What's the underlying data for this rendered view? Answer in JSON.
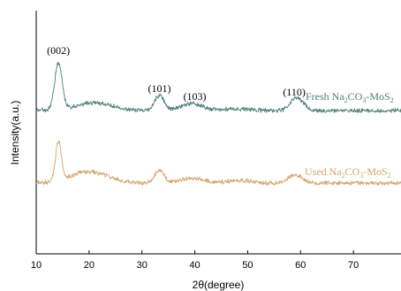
{
  "chart_data": {
    "type": "line",
    "xlabel": "2θ(degree)",
    "ylabel": "Intensity(a.u.)",
    "xlim": [
      10,
      79
    ],
    "x_ticks": [
      10,
      20,
      30,
      40,
      50,
      60,
      70
    ],
    "y_ticks_shown": false,
    "grid": false,
    "series": [
      {
        "name": "Fresh Na2CO3-MoS2",
        "label_parts": [
          "Fresh Na",
          "2",
          "CO",
          "3",
          "-MoS",
          "2"
        ],
        "color": "#4e7e76",
        "baseline": 125,
        "peaks": [
          {
            "x": 14.2,
            "height": 53,
            "width": 0.7
          },
          {
            "x": 21.0,
            "height": 9,
            "width": 3.5
          },
          {
            "x": 33.3,
            "height": 17,
            "width": 0.9
          },
          {
            "x": 39.5,
            "height": 8,
            "width": 2.0
          },
          {
            "x": 48.0,
            "height": 2,
            "width": 2.5
          },
          {
            "x": 59.3,
            "height": 15,
            "width": 1.2
          }
        ]
      },
      {
        "name": "Used Na2CO3-MoS2",
        "label_parts": [
          "Used Na",
          "2",
          "CO",
          "3",
          "-MoS",
          "2"
        ],
        "color": "#d3a56c",
        "baseline": 207,
        "peaks": [
          {
            "x": 14.2,
            "height": 45,
            "width": 0.55
          },
          {
            "x": 20.0,
            "height": 13,
            "width": 3.5
          },
          {
            "x": 33.3,
            "height": 15,
            "width": 0.9
          },
          {
            "x": 39.8,
            "height": 6,
            "width": 2.2
          },
          {
            "x": 48.5,
            "height": 3,
            "width": 2.0
          },
          {
            "x": 59.0,
            "height": 10,
            "width": 1.2
          }
        ]
      }
    ],
    "annotations": [
      {
        "text": "(002)",
        "x": 14.2
      },
      {
        "text": "(101)",
        "x": 33.3
      },
      {
        "text": "(103)",
        "x": 40.0
      },
      {
        "text": "(110)",
        "x": 58.8
      }
    ]
  }
}
